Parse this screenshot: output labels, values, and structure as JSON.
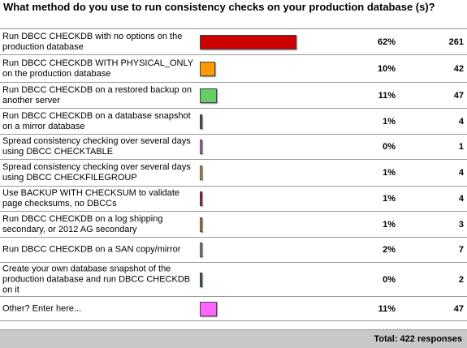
{
  "poll": {
    "question": "What method do you use to run consistency checks on your production database (s)?",
    "total_label": "Total: 422 responses"
  },
  "chart_data": {
    "type": "bar",
    "orientation": "horizontal",
    "title": "What method do you use to run consistency checks on your production database (s)?",
    "categories": [
      "Run DBCC CHECKDB with no options on the production database",
      "Run DBCC CHECKDB WITH PHYSICAL_ONLY on the production database",
      "Run DBCC CHECKDB on a restored backup on another server",
      "Run DBCC CHECKDB on a database snapshot on a mirror database",
      "Spread consistency checking over several days using DBCC CHECKTABLE",
      "Spread consistency checking over several days using DBCC CHECKFILEGROUP",
      "Use BACKUP WITH CHECKSUM to validate page checksums, no DBCCs",
      "Run DBCC CHECKDB on a log shipping secondary, or 2012 AG secondary",
      "Run DBCC CHECKDB on a SAN copy/mirror",
      "Create your own database snapshot of the production database and run DBCC CHECKDB on it",
      "Other? Enter here..."
    ],
    "percent_labels": [
      "62%",
      "10%",
      "11%",
      "1%",
      "0%",
      "1%",
      "1%",
      "1%",
      "2%",
      "0%",
      "11%"
    ],
    "values": [
      261,
      42,
      47,
      4,
      1,
      4,
      4,
      3,
      7,
      2,
      47
    ],
    "colors": [
      "#cc0000",
      "#ff9900",
      "#66cc66",
      "#1a5d8a",
      "#ff66ff",
      "#ffcc33",
      "#cc0000",
      "#ff9900",
      "#66cc66",
      "#1a5d8a",
      "#ff66ff"
    ],
    "total": 422
  }
}
